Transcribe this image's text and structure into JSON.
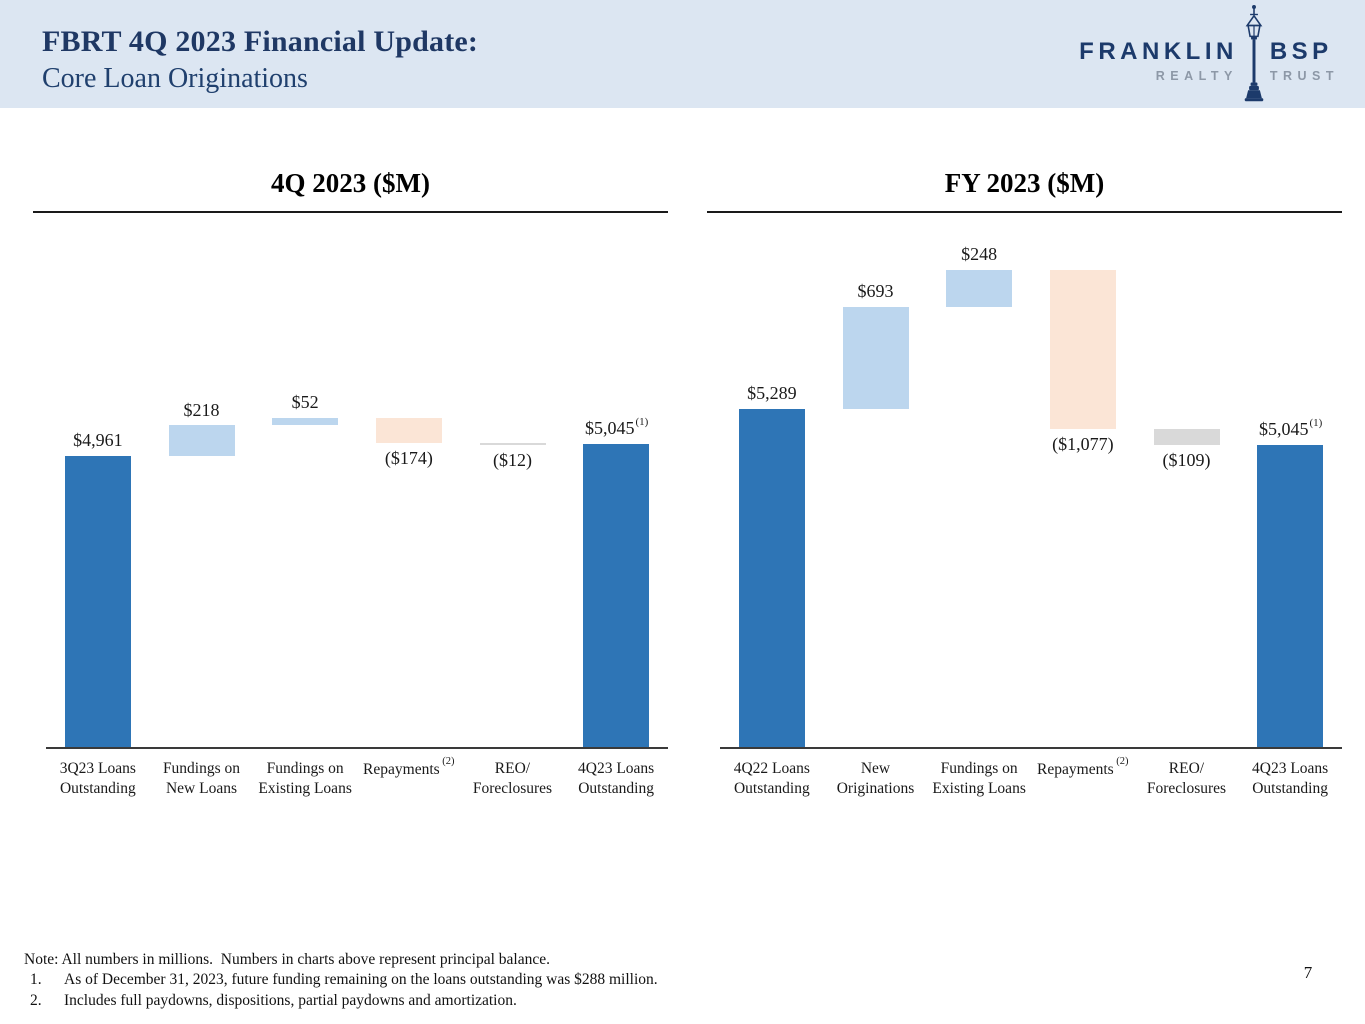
{
  "header": {
    "title_line1": "FBRT 4Q 2023 Financial Update:",
    "title_line2": "Core Loan Originations",
    "logo": {
      "brand_left": "FRANKLIN",
      "brand_right": "BSP",
      "sub_left": "REALTY",
      "sub_right": "TRUST"
    }
  },
  "chart_data": [
    {
      "type": "bar",
      "subtype": "waterfall",
      "title": "4Q 2023 ($M)",
      "ylim": [
        2900,
        6570
      ],
      "grid": false,
      "legend": "none",
      "categories": [
        {
          "lines": [
            "3Q23 Loans",
            "Outstanding"
          ]
        },
        {
          "lines": [
            "Fundings on",
            "New Loans"
          ]
        },
        {
          "lines": [
            "Fundings on",
            "Existing Loans"
          ]
        },
        {
          "lines": [
            "Repayments"
          ],
          "sup": "(2)"
        },
        {
          "lines": [
            "REO/",
            "Foreclosures"
          ]
        },
        {
          "lines": [
            "4Q23 Loans",
            "Outstanding"
          ]
        }
      ],
      "bars": [
        {
          "label": "$4,961",
          "value": 4961,
          "kind": "total",
          "color": "total"
        },
        {
          "label": "$218",
          "value": 218,
          "kind": "delta",
          "color": "increase"
        },
        {
          "label": "$52",
          "value": 52,
          "kind": "delta",
          "color": "increase"
        },
        {
          "label": "($174)",
          "value": -174,
          "kind": "delta",
          "color": "repayment"
        },
        {
          "label": "($12)",
          "value": -12,
          "kind": "delta",
          "color": "reo"
        },
        {
          "label": "$5,045",
          "value": 5045,
          "kind": "total",
          "color": "total",
          "label_sup": "(1)"
        }
      ]
    },
    {
      "type": "bar",
      "subtype": "waterfall",
      "title": "FY 2023 ($M)",
      "ylim": [
        2990,
        6510
      ],
      "grid": false,
      "legend": "none",
      "categories": [
        {
          "lines": [
            "4Q22 Loans",
            "Outstanding"
          ]
        },
        {
          "lines": [
            "New",
            "Originations"
          ]
        },
        {
          "lines": [
            "Fundings on",
            "Existing Loans"
          ]
        },
        {
          "lines": [
            "Repayments"
          ],
          "sup": "(2)"
        },
        {
          "lines": [
            "REO/",
            "Foreclosures"
          ]
        },
        {
          "lines": [
            "4Q23 Loans",
            "Outstanding"
          ]
        }
      ],
      "bars": [
        {
          "label": "$5,289",
          "value": 5289,
          "kind": "total",
          "color": "total"
        },
        {
          "label": "$693",
          "value": 693,
          "kind": "delta",
          "color": "increase"
        },
        {
          "label": "$248",
          "value": 248,
          "kind": "delta",
          "color": "increase"
        },
        {
          "label": "($1,077)",
          "value": -1077,
          "kind": "delta",
          "color": "repayment"
        },
        {
          "label": "($109)",
          "value": -109,
          "kind": "delta",
          "color": "reo"
        },
        {
          "label": "$5,045",
          "value": 5045,
          "kind": "total",
          "color": "total",
          "label_sup": "(1)"
        }
      ]
    }
  ],
  "footnotes": {
    "note": "Note: All numbers in millions.  Numbers in charts above represent principal balance.",
    "items": [
      {
        "num": "1.",
        "text": "As of December 31, 2023, future funding remaining on the loans outstanding was $288 million."
      },
      {
        "num": "2.",
        "text": "Includes full paydowns, dispositions, partial paydowns and amortization."
      }
    ]
  },
  "page_number": "7",
  "colors": {
    "header_bg": "#dce6f2",
    "title_navy": "#1f3864",
    "logo_navy": "#1c3a6b",
    "logo_gray": "#8d98a7",
    "bar_total": "#2e75b6",
    "bar_increase": "#bcd6ee",
    "bar_repayment": "#fbe5d6",
    "bar_reo": "#d9d9d9",
    "axis": "#3a3a3a",
    "label_text": "#1a1a1a"
  }
}
